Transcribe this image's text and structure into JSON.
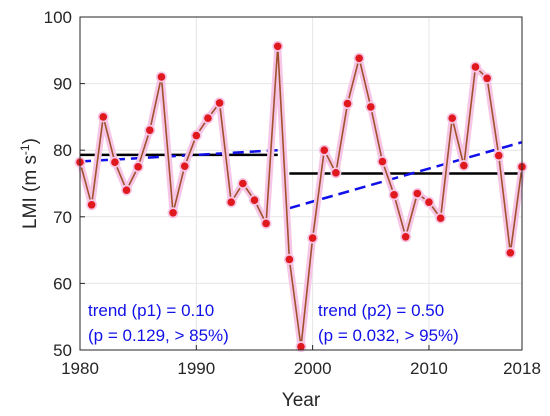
{
  "chart_data": {
    "type": "line",
    "xlabel": "Year",
    "ylabel": {
      "main": "LMI (m s",
      "sup": "-1",
      "end": ")"
    },
    "xlim": [
      1980,
      2018
    ],
    "ylim": [
      50,
      100
    ],
    "xticks": [
      1980,
      1990,
      2000,
      2010,
      2018
    ],
    "yticks": [
      50,
      60,
      70,
      80,
      90,
      100
    ],
    "grid": true,
    "series": [
      {
        "x": [
          1980,
          1981,
          1982,
          1983,
          1984,
          1985,
          1986,
          1987,
          1988,
          1989,
          1990,
          1991,
          1992,
          1993,
          1994,
          1995,
          1996,
          1997,
          1998,
          1999,
          2000,
          2001,
          2002,
          2003,
          2004,
          2005,
          2006,
          2007,
          2008,
          2009,
          2010,
          2011,
          2012,
          2013,
          2014,
          2015,
          2016,
          2017,
          2018
        ],
        "values": [
          78.2,
          71.8,
          85.0,
          78.2,
          74.0,
          77.5,
          83.0,
          91.0,
          70.6,
          77.6,
          82.2,
          84.8,
          87.1,
          72.2,
          75.0,
          72.5,
          69.0,
          95.6,
          63.6,
          50.5,
          66.8,
          80.0,
          76.6,
          87.0,
          93.8,
          86.5,
          78.3,
          73.3,
          67.0,
          73.5,
          72.2,
          69.8,
          84.8,
          77.7,
          92.5,
          90.8,
          79.2,
          64.6,
          77.5
        ],
        "line_color": "#A0522D",
        "marker_color": "#E0191E",
        "halo_color": "#F7C6E6"
      }
    ],
    "means": [
      {
        "x": [
          1980,
          1997
        ],
        "y": 79.3
      },
      {
        "x": [
          1998,
          2018
        ],
        "y": 76.5
      }
    ],
    "trends": [
      {
        "x": [
          1980,
          1997
        ],
        "y": [
          78.3,
          80.0
        ]
      },
      {
        "x": [
          1998,
          2018
        ],
        "y": [
          71.3,
          81.2
        ]
      }
    ],
    "annotations": [
      {
        "line1": "trend (p1) = 0.10",
        "line2": "(p = 0.129, > 85%)"
      },
      {
        "line1": "trend (p2) = 0.50",
        "line2": "(p = 0.032, > 95%)"
      }
    ],
    "colors": {
      "mean": "#000000",
      "trend": "#1010E8",
      "annotation": "#1010E8",
      "grid": "#E6E6E6",
      "axis": "#262626"
    }
  }
}
